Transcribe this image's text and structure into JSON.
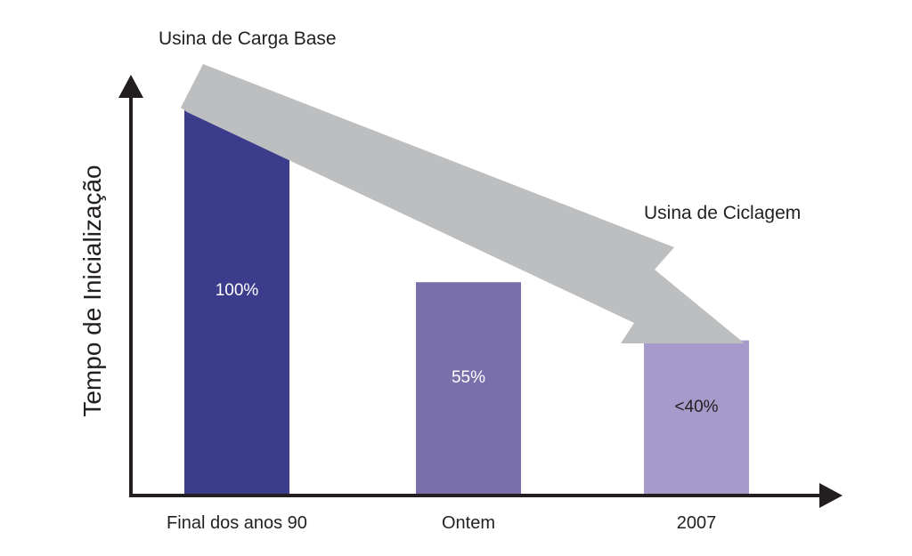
{
  "chart_data": {
    "type": "bar",
    "title": "",
    "xlabel": "",
    "ylabel": "Tempo de Inicialização",
    "categories": [
      "Final dos anos 90",
      "Ontem",
      "2007"
    ],
    "values": [
      100,
      55,
      40
    ],
    "value_labels": [
      "100%",
      "55%",
      "<40%"
    ],
    "ylim": [
      0,
      100
    ],
    "grid": false,
    "bar_colors": [
      "#3c3c8c",
      "#7970ab",
      "#a69acb"
    ],
    "value_label_colors": [
      "#ffffff",
      "#ffffff",
      "#231f20"
    ],
    "annotations": {
      "start": "Usina de Carga Base",
      "end": "Usina de Ciclagem"
    },
    "trend_arrow_color": "#bcbec0",
    "axis_color": "#231f20"
  }
}
